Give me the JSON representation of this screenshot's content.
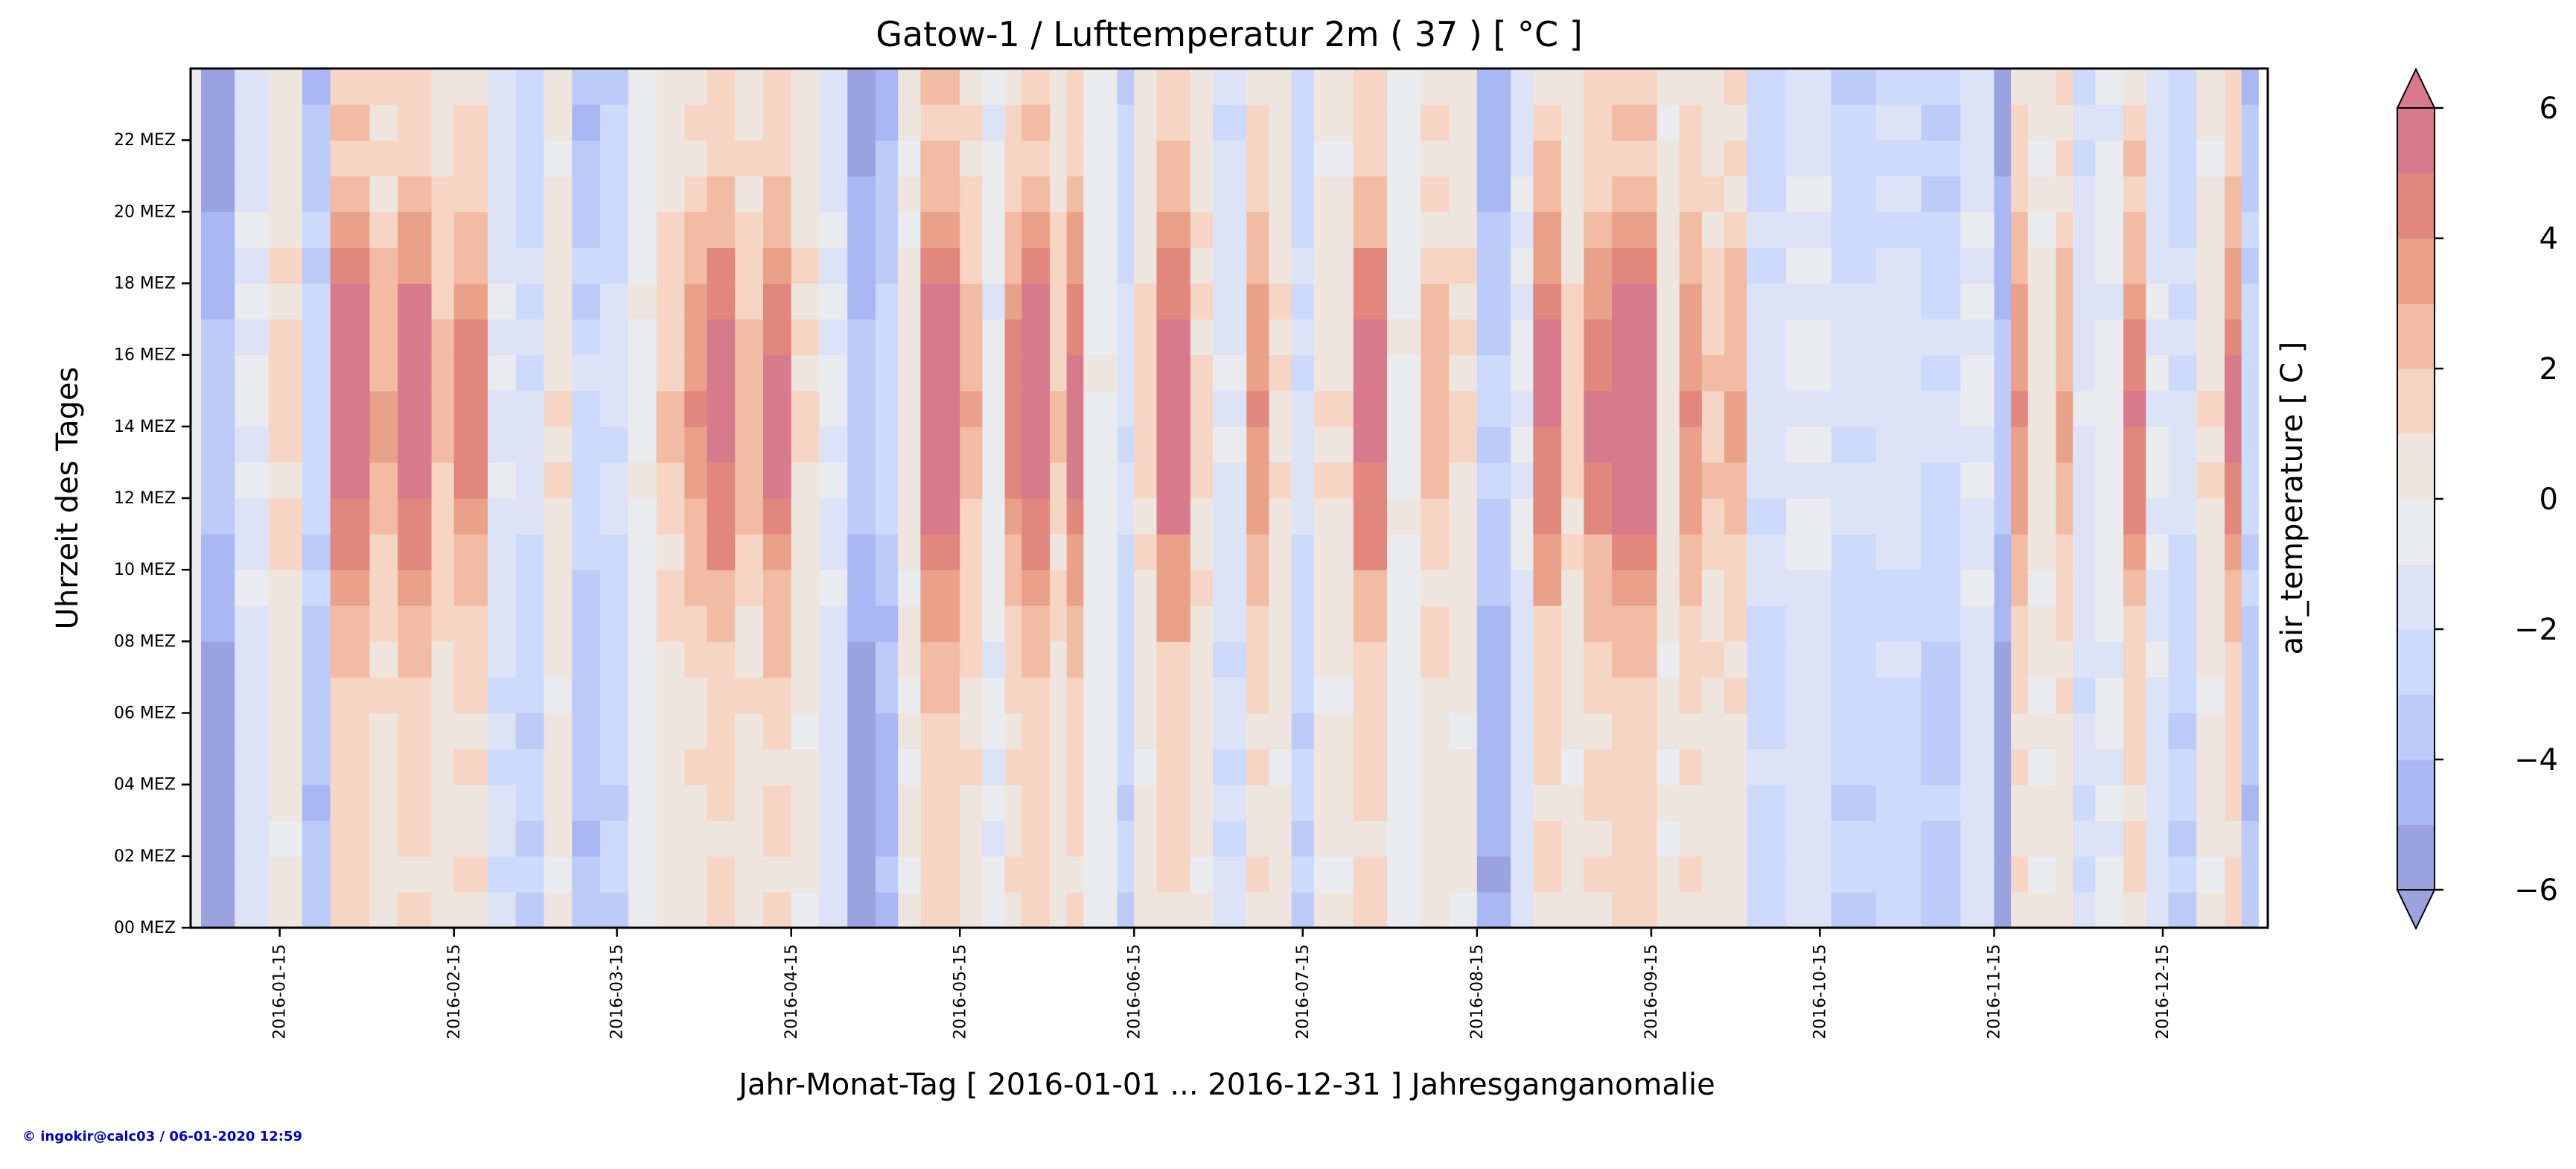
{
  "chart_data": {
    "type": "heatmap",
    "title": "Gatow-1 / Lufttemperatur 2m ( 37 ) [ °C ]",
    "xlabel": "Jahr-Monat-Tag [ 2016-01-01 ... 2016-12-31 ] Jahresganganomalie",
    "ylabel": "Uhrzeit des Tages",
    "colorbar_label": "air_temperature [ C ]",
    "x_range": [
      "2016-01-01",
      "2016-12-31"
    ],
    "x_ticks": [
      "2016-01-15",
      "2016-02-15",
      "2016-03-15",
      "2016-04-15",
      "2016-05-15",
      "2016-06-15",
      "2016-07-15",
      "2016-08-15",
      "2016-09-15",
      "2016-10-15",
      "2016-11-15",
      "2016-12-15"
    ],
    "x_tick_days": [
      14,
      45,
      74,
      105,
      135,
      166,
      196,
      227,
      258,
      288,
      319,
      349
    ],
    "y_ticks": [
      "00 MEZ",
      "02 MEZ",
      "04 MEZ",
      "06 MEZ",
      "08 MEZ",
      "10 MEZ",
      "12 MEZ",
      "14 MEZ",
      "16 MEZ",
      "18 MEZ",
      "20 MEZ",
      "22 MEZ"
    ],
    "y_range_hours": [
      0,
      24
    ],
    "colorbar_levels": [
      -6,
      -5,
      -4,
      -3,
      -2,
      -1,
      0,
      1,
      2,
      3,
      4,
      5,
      6
    ],
    "colorbar_ticks": [
      "−6",
      "−4",
      "−2",
      "0",
      "2",
      "4",
      "6"
    ],
    "colorbar_tick_values": [
      -6,
      -4,
      -2,
      0,
      2,
      4,
      6
    ],
    "colorbar_extend": "both",
    "colors": [
      "#9aa3e0",
      "#a9b8f2",
      "#bccbf8",
      "#cedafb",
      "#dce3f6",
      "#e9ebef",
      "#efe5df",
      "#f7d5c4",
      "#f2bba3",
      "#eaa18a",
      "#e1877e",
      "#d77a8c"
    ],
    "anomaly_segments": [
      {
        "start": 0,
        "end": 6,
        "value": -6
      },
      {
        "start": 6,
        "end": 12,
        "value": -1.5
      },
      {
        "start": 12,
        "end": 18,
        "value": 1.5
      },
      {
        "start": 18,
        "end": 23,
        "value": -4
      },
      {
        "start": 23,
        "end": 30,
        "value": 6.5
      },
      {
        "start": 30,
        "end": 35,
        "value": 3
      },
      {
        "start": 35,
        "end": 41,
        "value": 6.5
      },
      {
        "start": 41,
        "end": 45,
        "value": 2.5
      },
      {
        "start": 45,
        "end": 51,
        "value": 4.5
      },
      {
        "start": 51,
        "end": 56,
        "value": -2
      },
      {
        "start": 56,
        "end": 61,
        "value": -3
      },
      {
        "start": 61,
        "end": 66,
        "value": 1
      },
      {
        "start": 66,
        "end": 71,
        "value": -4
      },
      {
        "start": 71,
        "end": 76,
        "value": -3
      },
      {
        "start": 76,
        "end": 81,
        "value": -0.5
      },
      {
        "start": 81,
        "end": 86,
        "value": 2
      },
      {
        "start": 86,
        "end": 90,
        "value": 4
      },
      {
        "start": 90,
        "end": 95,
        "value": 6
      },
      {
        "start": 95,
        "end": 100,
        "value": 2.5
      },
      {
        "start": 100,
        "end": 105,
        "value": 5.5
      },
      {
        "start": 105,
        "end": 110,
        "value": 1
      },
      {
        "start": 110,
        "end": 115,
        "value": -1.5
      },
      {
        "start": 115,
        "end": 120,
        "value": -6
      },
      {
        "start": 120,
        "end": 124,
        "value": -4.5
      },
      {
        "start": 124,
        "end": 128,
        "value": 0.5
      },
      {
        "start": 128,
        "end": 135,
        "value": 7
      },
      {
        "start": 135,
        "end": 139,
        "value": 3
      },
      {
        "start": 139,
        "end": 143,
        "value": -1
      },
      {
        "start": 143,
        "end": 146,
        "value": 4.5
      },
      {
        "start": 146,
        "end": 151,
        "value": 6.5
      },
      {
        "start": 151,
        "end": 154,
        "value": 2
      },
      {
        "start": 154,
        "end": 157,
        "value": 6
      },
      {
        "start": 157,
        "end": 163,
        "value": -0.5
      },
      {
        "start": 163,
        "end": 166,
        "value": -3
      },
      {
        "start": 166,
        "end": 170,
        "value": 1.5
      },
      {
        "start": 170,
        "end": 176,
        "value": 6.5
      },
      {
        "start": 176,
        "end": 180,
        "value": 1.5
      },
      {
        "start": 180,
        "end": 186,
        "value": -2
      },
      {
        "start": 186,
        "end": 190,
        "value": 4
      },
      {
        "start": 190,
        "end": 194,
        "value": 1
      },
      {
        "start": 194,
        "end": 198,
        "value": -3
      },
      {
        "start": 198,
        "end": 205,
        "value": 1
      },
      {
        "start": 205,
        "end": 211,
        "value": 6
      },
      {
        "start": 211,
        "end": 217,
        "value": -0.5
      },
      {
        "start": 217,
        "end": 222,
        "value": 2.5
      },
      {
        "start": 222,
        "end": 227,
        "value": 1
      },
      {
        "start": 227,
        "end": 233,
        "value": -5
      },
      {
        "start": 233,
        "end": 237,
        "value": -1.5
      },
      {
        "start": 237,
        "end": 242,
        "value": 5.5
      },
      {
        "start": 242,
        "end": 246,
        "value": 1.5
      },
      {
        "start": 246,
        "end": 251,
        "value": 5
      },
      {
        "start": 251,
        "end": 259,
        "value": 7
      },
      {
        "start": 259,
        "end": 263,
        "value": 0.5
      },
      {
        "start": 263,
        "end": 267,
        "value": 4
      },
      {
        "start": 267,
        "end": 271,
        "value": 2
      },
      {
        "start": 271,
        "end": 275,
        "value": 3
      },
      {
        "start": 275,
        "end": 282,
        "value": -2.5
      },
      {
        "start": 282,
        "end": 290,
        "value": -1.5
      },
      {
        "start": 290,
        "end": 298,
        "value": -3
      },
      {
        "start": 298,
        "end": 306,
        "value": -2.5
      },
      {
        "start": 306,
        "end": 313,
        "value": -3.5
      },
      {
        "start": 313,
        "end": 319,
        "value": -1.5
      },
      {
        "start": 319,
        "end": 322,
        "value": -6
      },
      {
        "start": 322,
        "end": 325,
        "value": 4
      },
      {
        "start": 325,
        "end": 330,
        "value": 0.5
      },
      {
        "start": 330,
        "end": 333,
        "value": 3
      },
      {
        "start": 333,
        "end": 337,
        "value": -2
      },
      {
        "start": 337,
        "end": 342,
        "value": -1
      },
      {
        "start": 342,
        "end": 346,
        "value": 5
      },
      {
        "start": 346,
        "end": 350,
        "value": -1.5
      },
      {
        "start": 350,
        "end": 355,
        "value": -3
      },
      {
        "start": 355,
        "end": 360,
        "value": 1
      },
      {
        "start": 360,
        "end": 363,
        "value": 5.5
      },
      {
        "start": 363,
        "end": 366,
        "value": -4
      }
    ]
  },
  "footer": {
    "credit": "© ingokir@calc03 / 06-01-2020 12:59"
  }
}
